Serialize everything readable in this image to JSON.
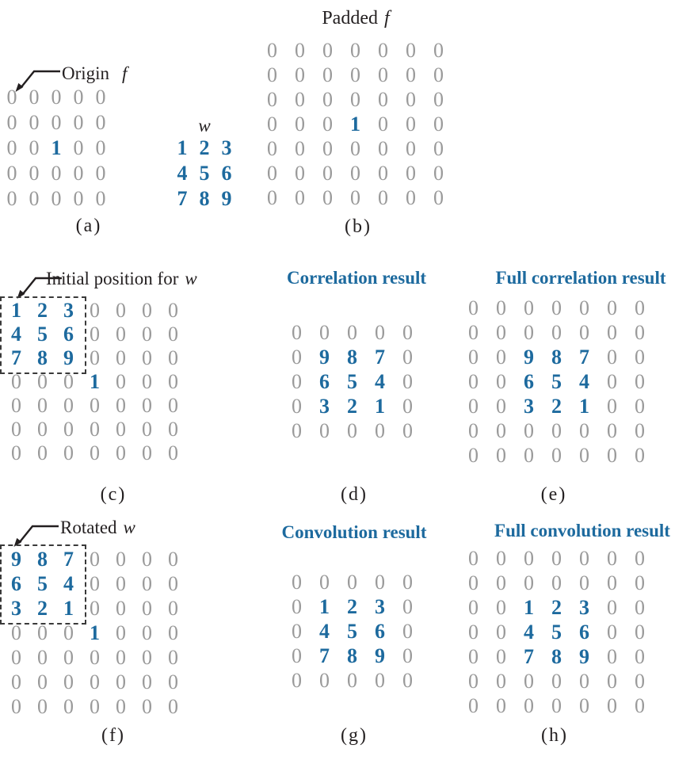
{
  "figure": {
    "colors": {
      "accent_blue": "#1d6a9e",
      "zero_gray": "#9a9a9a",
      "ink_black": "#231f20"
    },
    "panels": {
      "a": {
        "origin_label": "Origin",
        "f_symbol": "f",
        "w_symbol": "w",
        "caption": "(a)",
        "f_matrix": [
          [
            "0",
            "0",
            "0",
            "0",
            "0"
          ],
          [
            "0",
            "0",
            "0",
            "0",
            "0"
          ],
          [
            "0",
            "0",
            "1",
            "0",
            "0"
          ],
          [
            "0",
            "0",
            "0",
            "0",
            "0"
          ],
          [
            "0",
            "0",
            "0",
            "0",
            "0"
          ]
        ],
        "w_matrix": [
          [
            "1",
            "2",
            "3"
          ],
          [
            "4",
            "5",
            "6"
          ],
          [
            "7",
            "8",
            "9"
          ]
        ]
      },
      "b": {
        "title": "Padded",
        "title_symbol": "f",
        "caption": "(b)",
        "matrix": [
          [
            "0",
            "0",
            "0",
            "0",
            "0",
            "0",
            "0"
          ],
          [
            "0",
            "0",
            "0",
            "0",
            "0",
            "0",
            "0"
          ],
          [
            "0",
            "0",
            "0",
            "0",
            "0",
            "0",
            "0"
          ],
          [
            "0",
            "0",
            "0",
            "1",
            "0",
            "0",
            "0"
          ],
          [
            "0",
            "0",
            "0",
            "0",
            "0",
            "0",
            "0"
          ],
          [
            "0",
            "0",
            "0",
            "0",
            "0",
            "0",
            "0"
          ],
          [
            "0",
            "0",
            "0",
            "0",
            "0",
            "0",
            "0"
          ]
        ]
      },
      "c": {
        "label": "Initial position for",
        "label_symbol": "w",
        "caption": "(c)",
        "matrix": [
          [
            "1",
            "2",
            "3",
            "0",
            "0",
            "0",
            "0"
          ],
          [
            "4",
            "5",
            "6",
            "0",
            "0",
            "0",
            "0"
          ],
          [
            "7",
            "8",
            "9",
            "0",
            "0",
            "0",
            "0"
          ],
          [
            "0",
            "0",
            "0",
            "1",
            "0",
            "0",
            "0"
          ],
          [
            "0",
            "0",
            "0",
            "0",
            "0",
            "0",
            "0"
          ],
          [
            "0",
            "0",
            "0",
            "0",
            "0",
            "0",
            "0"
          ],
          [
            "0",
            "0",
            "0",
            "0",
            "0",
            "0",
            "0"
          ]
        ]
      },
      "d": {
        "title": "Correlation result",
        "caption": "(d)",
        "matrix": [
          [
            "0",
            "0",
            "0",
            "0",
            "0"
          ],
          [
            "0",
            "9",
            "8",
            "7",
            "0"
          ],
          [
            "0",
            "6",
            "5",
            "4",
            "0"
          ],
          [
            "0",
            "3",
            "2",
            "1",
            "0"
          ],
          [
            "0",
            "0",
            "0",
            "0",
            "0"
          ]
        ]
      },
      "e": {
        "title": "Full correlation result",
        "caption": "(e)",
        "matrix": [
          [
            "0",
            "0",
            "0",
            "0",
            "0",
            "0",
            "0"
          ],
          [
            "0",
            "0",
            "0",
            "0",
            "0",
            "0",
            "0"
          ],
          [
            "0",
            "0",
            "9",
            "8",
            "7",
            "0",
            "0"
          ],
          [
            "0",
            "0",
            "6",
            "5",
            "4",
            "0",
            "0"
          ],
          [
            "0",
            "0",
            "3",
            "2",
            "1",
            "0",
            "0"
          ],
          [
            "0",
            "0",
            "0",
            "0",
            "0",
            "0",
            "0"
          ],
          [
            "0",
            "0",
            "0",
            "0",
            "0",
            "0",
            "0"
          ]
        ]
      },
      "f": {
        "label": "Rotated",
        "label_symbol": "w",
        "caption": "(f)",
        "matrix": [
          [
            "9",
            "8",
            "7",
            "0",
            "0",
            "0",
            "0"
          ],
          [
            "6",
            "5",
            "4",
            "0",
            "0",
            "0",
            "0"
          ],
          [
            "3",
            "2",
            "1",
            "0",
            "0",
            "0",
            "0"
          ],
          [
            "0",
            "0",
            "0",
            "1",
            "0",
            "0",
            "0"
          ],
          [
            "0",
            "0",
            "0",
            "0",
            "0",
            "0",
            "0"
          ],
          [
            "0",
            "0",
            "0",
            "0",
            "0",
            "0",
            "0"
          ],
          [
            "0",
            "0",
            "0",
            "0",
            "0",
            "0",
            "0"
          ]
        ]
      },
      "g": {
        "title": "Convolution result",
        "caption": "(g)",
        "matrix": [
          [
            "0",
            "0",
            "0",
            "0",
            "0"
          ],
          [
            "0",
            "1",
            "2",
            "3",
            "0"
          ],
          [
            "0",
            "4",
            "5",
            "6",
            "0"
          ],
          [
            "0",
            "7",
            "8",
            "9",
            "0"
          ],
          [
            "0",
            "0",
            "0",
            "0",
            "0"
          ]
        ]
      },
      "h": {
        "title": "Full convolution result",
        "caption": "(h)",
        "matrix": [
          [
            "0",
            "0",
            "0",
            "0",
            "0",
            "0",
            "0"
          ],
          [
            "0",
            "0",
            "0",
            "0",
            "0",
            "0",
            "0"
          ],
          [
            "0",
            "0",
            "1",
            "2",
            "3",
            "0",
            "0"
          ],
          [
            "0",
            "0",
            "4",
            "5",
            "6",
            "0",
            "0"
          ],
          [
            "0",
            "0",
            "7",
            "8",
            "9",
            "0",
            "0"
          ],
          [
            "0",
            "0",
            "0",
            "0",
            "0",
            "0",
            "0"
          ],
          [
            "0",
            "0",
            "0",
            "0",
            "0",
            "0",
            "0"
          ]
        ]
      }
    }
  }
}
